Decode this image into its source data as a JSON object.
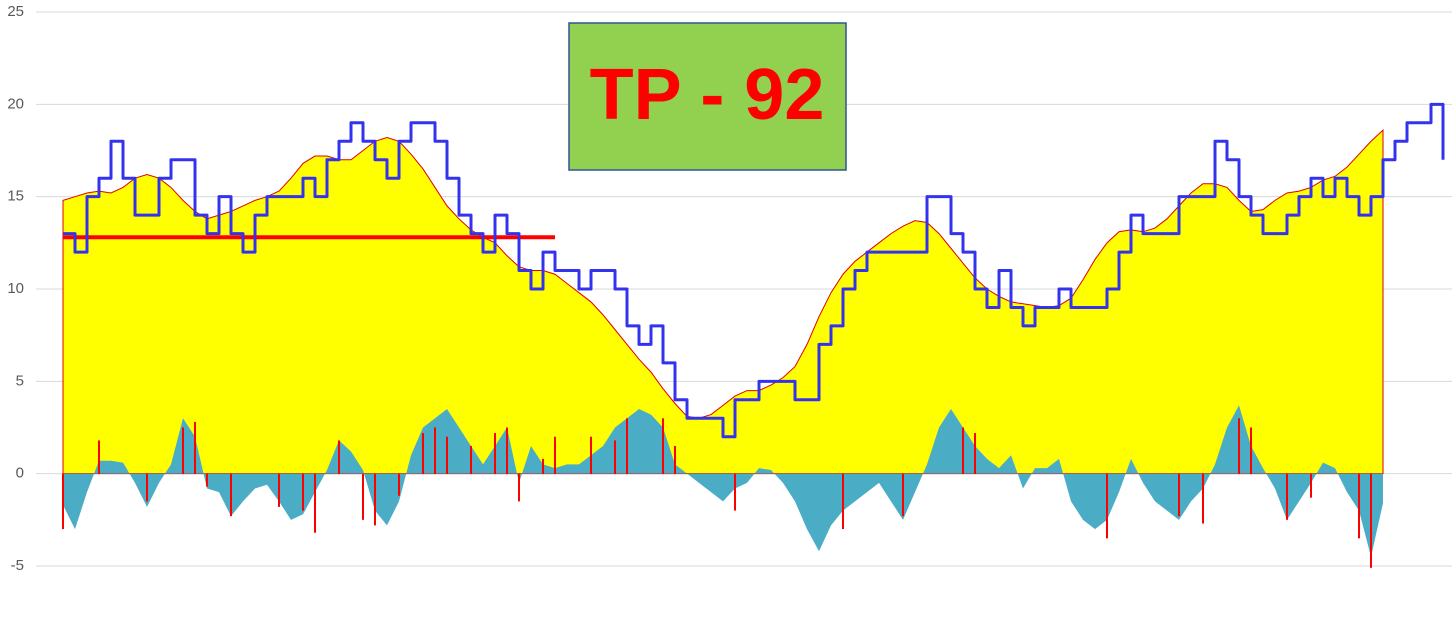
{
  "chart_data": {
    "type": "combo",
    "annotation": "TP - 92",
    "ylim": [
      -5,
      25
    ],
    "yticks": [
      -5,
      0,
      5,
      10,
      15,
      20,
      25
    ],
    "grid": true,
    "series": [
      {
        "kind": "area",
        "color": "#ffff00",
        "edge": "#e00000",
        "values": [
          14.8,
          15,
          15.2,
          15.3,
          15.2,
          15.5,
          16,
          16.2,
          16,
          15.5,
          14.8,
          14.2,
          13.8,
          14,
          14.2,
          14.5,
          14.8,
          15,
          15.3,
          16,
          16.8,
          17.2,
          17.2,
          17,
          17,
          17.5,
          18,
          18.2,
          18,
          17.3,
          16.5,
          15.5,
          14.5,
          13.8,
          13.2,
          12.8,
          12.5,
          11.8,
          11.2,
          11,
          11,
          10.8,
          10.3,
          9.8,
          9.3,
          8.6,
          7.8,
          7,
          6.2,
          5.5,
          4.6,
          3.8,
          3.1,
          3,
          3.2,
          3.7,
          4.2,
          4.5,
          4.5,
          4.8,
          5.2,
          5.8,
          7,
          8.5,
          9.8,
          10.8,
          11.5,
          12,
          12.5,
          13,
          13.4,
          13.7,
          13.6,
          13,
          12.2,
          11.4,
          10.6,
          10,
          9.6,
          9.3,
          9.2,
          9.1,
          9,
          9.1,
          9.5,
          10.5,
          11.6,
          12.5,
          13.1,
          13.2,
          13.1,
          13.3,
          13.8,
          14.5,
          15.2,
          15.7,
          15.7,
          15.5,
          14.8,
          14.2,
          14.3,
          14.8,
          15.2,
          15.3,
          15.5,
          15.9,
          16.1,
          16.6,
          17.3,
          18,
          18.6,
          null,
          null,
          null,
          null,
          null
        ]
      },
      {
        "kind": "area",
        "color": "#4bacc6",
        "values": [
          -1.7,
          -3,
          -1,
          0.7,
          0.7,
          0.6,
          -0.5,
          -1.8,
          -0.5,
          0.5,
          3,
          2,
          -0.8,
          -1,
          -2.3,
          -1.5,
          -0.8,
          -0.6,
          -1.5,
          -2.5,
          -2.2,
          -1,
          0.2,
          1.8,
          1.2,
          0.2,
          -2,
          -2.8,
          -1.5,
          1,
          2.5,
          3,
          3.5,
          2.5,
          1.5,
          0.5,
          1.5,
          2.5,
          -0.5,
          1.5,
          0.5,
          0.3,
          0.5,
          0.5,
          1,
          1.5,
          2.5,
          3,
          3.5,
          3.2,
          2.5,
          0.5,
          0,
          -0.5,
          -1,
          -1.5,
          -0.8,
          -0.5,
          0.3,
          0.2,
          -0.5,
          -1.5,
          -3,
          -4.2,
          -2.8,
          -2,
          -1.5,
          -1,
          -0.5,
          -1.5,
          -2.5,
          -1,
          0.5,
          2.5,
          3.5,
          2.5,
          1.5,
          0.8,
          0.3,
          1,
          -0.8,
          0.3,
          0.3,
          0.8,
          -1.5,
          -2.5,
          -3,
          -2.5,
          -1,
          0.8,
          -0.5,
          -1.5,
          -2,
          -2.5,
          -1.5,
          -0.8,
          0.5,
          2.5,
          3.7,
          1.5,
          0.3,
          -0.8,
          -2.5,
          -1.5,
          -0.5,
          0.6,
          0.3,
          -1,
          -2,
          -4.5,
          -1.6,
          null,
          null,
          null,
          null,
          null
        ]
      },
      {
        "kind": "bar",
        "color": "#ff0000",
        "values": [
          -3,
          null,
          null,
          1.8,
          null,
          null,
          null,
          -1.5,
          null,
          null,
          2.5,
          2.8,
          -0.7,
          null,
          -2.3,
          null,
          null,
          null,
          -1.8,
          null,
          -2,
          -3.2,
          null,
          1.8,
          null,
          -2.5,
          -2.8,
          null,
          -1.2,
          null,
          2.2,
          2.5,
          2,
          null,
          1.5,
          null,
          2.2,
          2.5,
          -1.5,
          null,
          0.8,
          2,
          null,
          null,
          2,
          null,
          1.8,
          3,
          null,
          null,
          3,
          1.5,
          null,
          null,
          null,
          null,
          -2,
          null,
          null,
          null,
          null,
          null,
          null,
          null,
          null,
          -3,
          null,
          null,
          null,
          null,
          -2.3,
          null,
          null,
          null,
          null,
          2.5,
          2.2,
          null,
          null,
          null,
          null,
          null,
          null,
          null,
          null,
          null,
          null,
          -3.5,
          null,
          null,
          null,
          null,
          null,
          -2.3,
          null,
          -2.7,
          null,
          null,
          3,
          2.5,
          null,
          null,
          -2.5,
          null,
          -1.3,
          null,
          null,
          null,
          -3.5,
          -5.1,
          null,
          null,
          null,
          null,
          null,
          null
        ]
      },
      {
        "kind": "line",
        "color": "#ff0000",
        "width": 4,
        "values": [
          12.8,
          12.8,
          12.8,
          12.8,
          12.8,
          12.8,
          12.8,
          12.8,
          12.8,
          12.8,
          12.8,
          12.8,
          12.8,
          12.8,
          12.8,
          12.8,
          12.8,
          12.8,
          12.8,
          12.8,
          12.8,
          12.8,
          12.8,
          12.8,
          12.8,
          12.8,
          12.8,
          12.8,
          12.8,
          12.8,
          12.8,
          12.8,
          12.8,
          12.8,
          12.8,
          12.8,
          12.8,
          12.8,
          12.8,
          12.8,
          12.8,
          12.8,
          null,
          null,
          null,
          null,
          null,
          null,
          null,
          null,
          null,
          null,
          null,
          null,
          null,
          null,
          null,
          null,
          null,
          null,
          null,
          null,
          null,
          null,
          null,
          null,
          null,
          null,
          null,
          null,
          null,
          null,
          null,
          null,
          null,
          null,
          null,
          null,
          null,
          null,
          null,
          null,
          null,
          null,
          null,
          null,
          null,
          null,
          null,
          null,
          null,
          null,
          null,
          null,
          null,
          null,
          null,
          null,
          null,
          null,
          null,
          null,
          null,
          null,
          null,
          null,
          null,
          null,
          null,
          null,
          null,
          null,
          null,
          null,
          null,
          null,
          null,
          null,
          null,
          null
        ]
      },
      {
        "kind": "step",
        "color": "#3333ee",
        "width": 3,
        "values": [
          13,
          12,
          15,
          16,
          18,
          16,
          14,
          14,
          16,
          17,
          17,
          14,
          13,
          15,
          13,
          12,
          14,
          15,
          15,
          15,
          16,
          15,
          17,
          18,
          19,
          18,
          17,
          16,
          18,
          19,
          19,
          18,
          16,
          14,
          13,
          12,
          14,
          13,
          11,
          10,
          12,
          11,
          11,
          10,
          11,
          11,
          10,
          8,
          7,
          8,
          6,
          4,
          3,
          3,
          3,
          2,
          4,
          4,
          5,
          5,
          5,
          4,
          4,
          7,
          8,
          10,
          11,
          12,
          12,
          12,
          12,
          12,
          15,
          15,
          13,
          12,
          10,
          9,
          11,
          9,
          8,
          9,
          9,
          10,
          9,
          9,
          9,
          10,
          12,
          14,
          13,
          13,
          13,
          15,
          15,
          15,
          18,
          17,
          15,
          14,
          13,
          13,
          14,
          15,
          16,
          15,
          16,
          15,
          14,
          15,
          17,
          18,
          19,
          19,
          20,
          17
        ]
      }
    ]
  }
}
